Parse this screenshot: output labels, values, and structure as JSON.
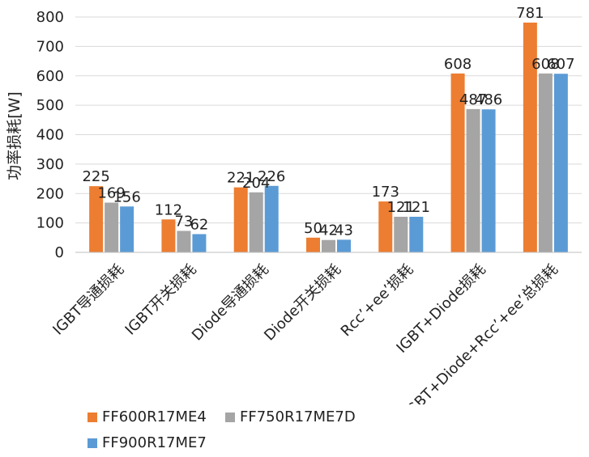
{
  "chart_data": {
    "type": "bar",
    "title": "",
    "xlabel": "",
    "ylabel": "功率损耗[W]",
    "ylim": [
      0,
      800
    ],
    "yticks": [
      0,
      100,
      200,
      300,
      400,
      500,
      600,
      700,
      800
    ],
    "grid": "y-major",
    "legend_position": "bottom",
    "categories": [
      "IGBT导通损耗",
      "IGBT开关损耗",
      "Diode导通损耗",
      "Diode开关损耗",
      "Rcc’+ee’损耗",
      "IGBT+Diode损耗",
      "IGBT+Diode+Rcc’+ee’总损耗"
    ],
    "series": [
      {
        "name": "FF600R17ME4",
        "color": "#ED7D31",
        "values": [
          225,
          112,
          221,
          50,
          173,
          608,
          781
        ]
      },
      {
        "name": "FF750R17ME7D",
        "color": "#A5A5A5",
        "values": [
          169,
          73,
          204,
          42,
          121,
          487,
          608
        ]
      },
      {
        "name": "FF900R17ME7",
        "color": "#5B9BD5",
        "values": [
          156,
          62,
          226,
          43,
          121,
          486,
          607
        ]
      }
    ]
  }
}
